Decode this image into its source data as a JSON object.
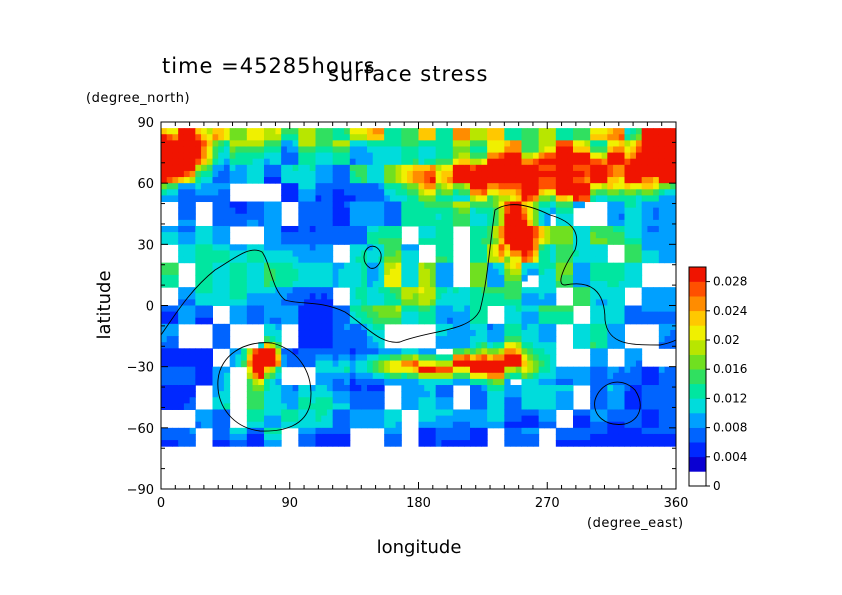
{
  "chart_data": {
    "type": "heatmap",
    "title": "surface stress",
    "time_label": "time =45285hours",
    "xlabel": "longitude",
    "ylabel": "latitude",
    "xunit": "(degree_east)",
    "yunit": "(degree_north)",
    "xlim": [
      0,
      360
    ],
    "ylim": [
      -90,
      90
    ],
    "x_ticks": [
      "0",
      "90",
      "180",
      "270",
      "360"
    ],
    "y_ticks": [
      "90",
      "60",
      "30",
      "0",
      "−30",
      "−60",
      "−90"
    ],
    "colorbar": {
      "min": 0,
      "max": 0.03,
      "tick_labels": [
        "0",
        "0.004",
        "0.008",
        "0.012",
        "0.016",
        "0.02",
        "0.024",
        "0.028"
      ],
      "colors": [
        "#ffffff",
        "#0a00d2",
        "#0028ff",
        "#0064ff",
        "#00a0ff",
        "#00dcdc",
        "#00e6a0",
        "#30e060",
        "#70e020",
        "#b8e600",
        "#f0f000",
        "#ffc800",
        "#ff8c00",
        "#ff5000",
        "#f01400"
      ]
    },
    "features": [
      {
        "lon": 180,
        "lat": 85,
        "value": 0.012,
        "sx": 200,
        "sy": 5
      },
      {
        "lon": 8,
        "lat": 75,
        "value": 0.03,
        "sx": 18,
        "sy": 8
      },
      {
        "lon": 350,
        "lat": 77,
        "value": 0.026,
        "sx": 14,
        "sy": 8
      },
      {
        "lon": 190,
        "lat": 72,
        "value": 0.006,
        "sx": 150,
        "sy": 14
      },
      {
        "lon": 255,
        "lat": 62,
        "value": 0.03,
        "sx": 48,
        "sy": 7
      },
      {
        "lon": 305,
        "lat": 68,
        "value": 0.02,
        "sx": 35,
        "sy": 6
      },
      {
        "lon": 250,
        "lat": 38,
        "value": 0.03,
        "sx": 8,
        "sy": 10
      },
      {
        "lon": 270,
        "lat": 30,
        "value": 0.007,
        "sx": 40,
        "sy": 30
      },
      {
        "lon": 165,
        "lat": 10,
        "value": 0.01,
        "sx": 25,
        "sy": 20
      },
      {
        "lon": 220,
        "lat": 20,
        "value": 0.005,
        "sx": 40,
        "sy": 30
      },
      {
        "lon": 75,
        "lat": 15,
        "value": 0.006,
        "sx": 30,
        "sy": 18
      },
      {
        "lon": 20,
        "lat": 20,
        "value": 0.005,
        "sx": 25,
        "sy": 20
      },
      {
        "lon": 330,
        "lat": 20,
        "value": 0.005,
        "sx": 30,
        "sy": 18
      },
      {
        "lon": 190,
        "lat": -30,
        "value": 0.026,
        "sx": 35,
        "sy": 4
      },
      {
        "lon": 240,
        "lat": -28,
        "value": 0.02,
        "sx": 15,
        "sy": 6
      },
      {
        "lon": 72,
        "lat": -28,
        "value": 0.028,
        "sx": 7,
        "sy": 6
      },
      {
        "lon": 70,
        "lat": -40,
        "value": 0.006,
        "sx": 25,
        "sy": 16
      },
      {
        "lon": 300,
        "lat": -25,
        "value": 0.006,
        "sx": 30,
        "sy": 15
      },
      {
        "lon": 100,
        "lat": -55,
        "value": 0.004,
        "sx": 60,
        "sy": 8
      },
      {
        "lon": 220,
        "lat": -50,
        "value": 0.004,
        "sx": 80,
        "sy": 10
      }
    ]
  }
}
